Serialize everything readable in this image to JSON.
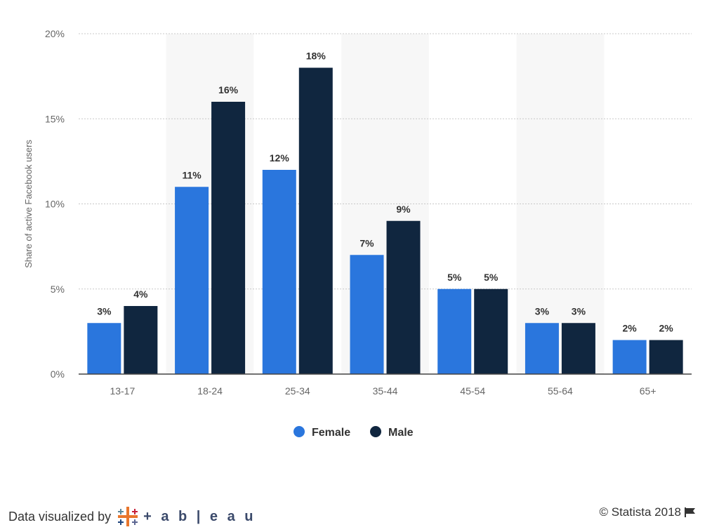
{
  "chart_data": {
    "type": "bar",
    "categories": [
      "13-17",
      "18-24",
      "25-34",
      "35-44",
      "45-54",
      "55-64",
      "65+"
    ],
    "series": [
      {
        "name": "Female",
        "values": [
          3,
          11,
          12,
          7,
          5,
          3,
          2
        ],
        "color": "#2a76dd"
      },
      {
        "name": "Male",
        "values": [
          4,
          16,
          18,
          9,
          5,
          3,
          2
        ],
        "color": "#10263f"
      }
    ],
    "data_labels": {
      "Female": [
        "3%",
        "11%",
        "12%",
        "7%",
        "5%",
        "3%",
        "2%"
      ],
      "Male": [
        "4%",
        "16%",
        "18%",
        "9%",
        "5%",
        "3%",
        "2%"
      ]
    },
    "ylabel": "Share of active Facebook users",
    "ylim": [
      0,
      20
    ],
    "yticks": [
      "0%",
      "5%",
      "10%",
      "15%",
      "20%"
    ],
    "grid": true,
    "legend": "bottom-center",
    "shaded_columns": [
      "18-24",
      "35-44",
      "55-64"
    ],
    "shade_color": "#f7f7f7"
  },
  "footer": {
    "credit": "Data visualized by",
    "brand": "+ a b | e a u",
    "copyright": "© Statista 2018"
  }
}
